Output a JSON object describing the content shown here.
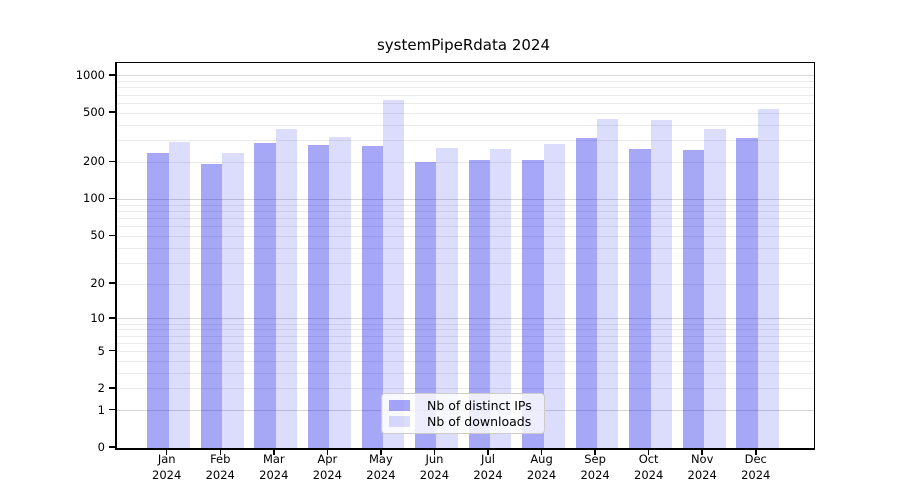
{
  "title": "systemPipeRdata 2024",
  "colors": {
    "bar_distinct_ips": "rgba(0,0,235,0.345)",
    "bar_downloads": "rgba(0,0,235,0.138)",
    "gridline_minor": "#ebebeb",
    "gridline_major": "#d6d6d6",
    "axis": "#000000",
    "legend_border": "#cccccc"
  },
  "chart_data": {
    "type": "bar",
    "title": "systemPipeRdata 2024",
    "categories": [
      "Jan",
      "Feb",
      "Mar",
      "Apr",
      "May",
      "Jun",
      "Jul",
      "Aug",
      "Sep",
      "Oct",
      "Nov",
      "Dec"
    ],
    "category_year": "2024",
    "series": [
      {
        "name": "Nb of distinct IPs",
        "color": "rgba(0,0,235,0.345)",
        "values": [
          240,
          195,
          285,
          275,
          270,
          200,
          210,
          210,
          315,
          255,
          250,
          315
        ]
      },
      {
        "name": "Nb of downloads",
        "color": "rgba(0,0,235,0.138)",
        "values": [
          295,
          240,
          375,
          320,
          645,
          260,
          255,
          280,
          450,
          440,
          375,
          540
        ]
      }
    ],
    "xlabel": "",
    "ylabel": "",
    "y_scale": "log1p",
    "ylim": [
      0,
      1000
    ],
    "y_ticks": [
      0,
      1,
      2,
      5,
      10,
      20,
      50,
      100,
      200,
      500,
      1000
    ],
    "grid": "horizontal, log minor + major",
    "legend_position": "lower center"
  }
}
